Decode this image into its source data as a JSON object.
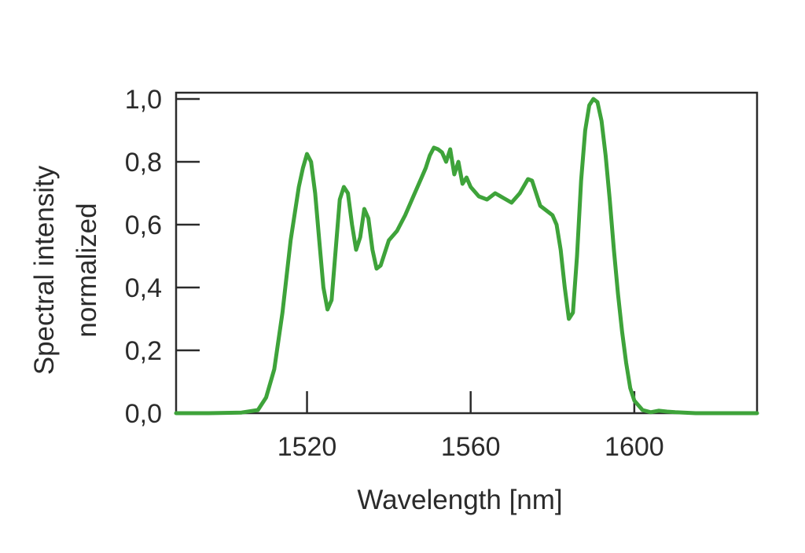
{
  "chart_data": {
    "type": "line",
    "xlabel": "Wavelength [nm]",
    "ylabel": [
      "Spectral intensity",
      "normalized"
    ],
    "xlim": [
      1488,
      1630
    ],
    "ylim": [
      0,
      1.0
    ],
    "x_ticks": [
      1520,
      1560,
      1600
    ],
    "x_tick_labels": [
      "1520",
      "1560",
      "1600"
    ],
    "y_ticks": [
      0,
      0.2,
      0.4,
      0.6,
      0.8,
      1.0
    ],
    "y_tick_labels": [
      "0,0",
      "0,2",
      "0,4",
      "0,6",
      "0,8",
      "1,0"
    ],
    "grid": false,
    "line_color": "#3ea33a",
    "series": [
      {
        "x": [
          1488,
          1496,
          1504,
          1508,
          1510,
          1512,
          1514,
          1516,
          1518,
          1519,
          1520,
          1521,
          1522,
          1523,
          1524,
          1525,
          1526,
          1527,
          1528,
          1529,
          1530,
          1531,
          1532,
          1533,
          1534,
          1535,
          1536,
          1537,
          1538,
          1540,
          1542,
          1544,
          1546,
          1548,
          1549,
          1550,
          1551,
          1552,
          1553,
          1554,
          1555,
          1556,
          1557,
          1558,
          1559,
          1560,
          1562,
          1564,
          1566,
          1568,
          1570,
          1572,
          1574,
          1575,
          1576,
          1577,
          1578,
          1580,
          1581,
          1582,
          1583,
          1584,
          1585,
          1586,
          1587,
          1588,
          1589,
          1590,
          1591,
          1592,
          1593,
          1594,
          1595,
          1596,
          1597,
          1598,
          1599,
          1600,
          1602,
          1604,
          1606,
          1608,
          1610,
          1615,
          1620,
          1630
        ],
        "y": [
          0.0,
          0.0,
          0.002,
          0.01,
          0.05,
          0.14,
          0.32,
          0.55,
          0.72,
          0.78,
          0.825,
          0.8,
          0.7,
          0.55,
          0.4,
          0.33,
          0.36,
          0.52,
          0.68,
          0.72,
          0.7,
          0.6,
          0.52,
          0.56,
          0.65,
          0.62,
          0.52,
          0.46,
          0.47,
          0.55,
          0.58,
          0.63,
          0.69,
          0.75,
          0.78,
          0.82,
          0.845,
          0.84,
          0.83,
          0.8,
          0.84,
          0.76,
          0.8,
          0.73,
          0.75,
          0.72,
          0.69,
          0.68,
          0.7,
          0.685,
          0.67,
          0.7,
          0.745,
          0.74,
          0.7,
          0.66,
          0.65,
          0.63,
          0.6,
          0.52,
          0.4,
          0.3,
          0.32,
          0.5,
          0.74,
          0.9,
          0.98,
          1.0,
          0.99,
          0.93,
          0.82,
          0.68,
          0.52,
          0.38,
          0.26,
          0.16,
          0.08,
          0.04,
          0.01,
          0.003,
          0.008,
          0.005,
          0.003,
          0.0,
          0.0,
          0.0
        ]
      }
    ]
  }
}
